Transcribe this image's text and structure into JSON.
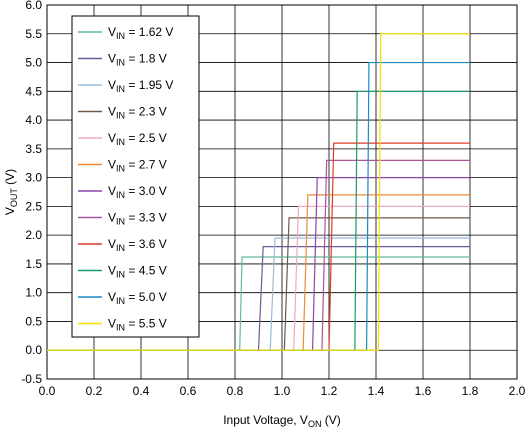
{
  "chart_data": {
    "type": "line",
    "xlabel": {
      "main": "Input Voltage, V",
      "sub": "ON",
      "unit": " (V)"
    },
    "ylabel": {
      "main": "V",
      "sub": "OUT",
      "unit": " (V)"
    },
    "xlim": [
      0.0,
      2.0
    ],
    "ylim": [
      -0.5,
      6.0
    ],
    "x_ticks": [
      "0.0",
      "0.2",
      "0.4",
      "0.6",
      "0.8",
      "1.0",
      "1.2",
      "1.4",
      "1.6",
      "1.8",
      "2.0"
    ],
    "y_ticks": [
      "-0.5",
      "0.0",
      "0.5",
      "1.0",
      "1.5",
      "2.0",
      "2.5",
      "3.0",
      "3.5",
      "4.0",
      "4.5",
      "5.0",
      "5.5",
      "6.0"
    ],
    "grid": true,
    "legend_position": "top-left",
    "series": [
      {
        "name": "V_IN = 1.62 V",
        "legend_main": "V",
        "legend_sub": "IN",
        "legend_value": " = 1.62 V",
        "color": "#66bb99",
        "x": [
          0.0,
          0.82,
          0.83,
          1.8
        ],
        "y": [
          0.0,
          0.0,
          1.62,
          1.62
        ]
      },
      {
        "name": "V_IN = 1.8 V",
        "legend_main": "V",
        "legend_sub": "IN",
        "legend_value": " = 1.8 V",
        "color": "#6b5b95",
        "x": [
          0.0,
          0.9,
          0.92,
          1.8
        ],
        "y": [
          0.0,
          0.0,
          1.8,
          1.8
        ]
      },
      {
        "name": "V_IN = 1.95 V",
        "legend_main": "V",
        "legend_sub": "IN",
        "legend_value": " = 1.95 V",
        "color": "#99bbdd",
        "x": [
          0.0,
          0.95,
          0.97,
          1.8
        ],
        "y": [
          0.0,
          0.0,
          1.95,
          1.95
        ]
      },
      {
        "name": "V_IN = 2.3 V",
        "legend_main": "V",
        "legend_sub": "IN",
        "legend_value": " = 2.3 V",
        "color": "#6e5a4a",
        "x": [
          0.0,
          1.01,
          1.03,
          1.8
        ],
        "y": [
          0.0,
          0.0,
          2.3,
          2.3
        ]
      },
      {
        "name": "V_IN = 2.5 V",
        "legend_main": "V",
        "legend_sub": "IN",
        "legend_value": " = 2.5 V",
        "color": "#f2a9c8",
        "x": [
          0.0,
          1.05,
          1.07,
          1.8
        ],
        "y": [
          0.0,
          0.0,
          2.5,
          2.5
        ]
      },
      {
        "name": "V_IN = 2.7 V",
        "legend_main": "V",
        "legend_sub": "IN",
        "legend_value": " = 2.7 V",
        "color": "#f08a3a",
        "x": [
          0.0,
          1.09,
          1.11,
          1.8
        ],
        "y": [
          0.0,
          0.0,
          2.7,
          2.7
        ]
      },
      {
        "name": "V_IN = 3.0 V",
        "legend_main": "V",
        "legend_sub": "IN",
        "legend_value": " = 3.0 V",
        "color": "#8e44ad",
        "x": [
          0.0,
          1.13,
          1.15,
          1.8
        ],
        "y": [
          0.0,
          0.0,
          3.0,
          3.0
        ]
      },
      {
        "name": "V_IN = 3.3 V",
        "legend_main": "V",
        "legend_sub": "IN",
        "legend_value": " = 3.3 V",
        "color": "#a8559a",
        "x": [
          0.0,
          1.17,
          1.19,
          1.8
        ],
        "y": [
          0.0,
          0.0,
          3.3,
          3.3
        ]
      },
      {
        "name": "V_IN = 3.6 V",
        "legend_main": "V",
        "legend_sub": "IN",
        "legend_value": " = 3.6 V",
        "color": "#e03a2a",
        "x": [
          0.0,
          1.2,
          1.22,
          1.8
        ],
        "y": [
          0.0,
          0.0,
          3.6,
          3.6
        ]
      },
      {
        "name": "V_IN = 4.5 V",
        "legend_main": "V",
        "legend_sub": "IN",
        "legend_value": " = 4.5 V",
        "color": "#1a9a6a",
        "x": [
          0.0,
          1.31,
          1.32,
          1.8
        ],
        "y": [
          0.0,
          0.0,
          4.5,
          4.5
        ]
      },
      {
        "name": "V_IN = 5.0 V",
        "legend_main": "V",
        "legend_sub": "IN",
        "legend_value": " = 5.0 V",
        "color": "#1a8ac0",
        "x": [
          0.0,
          1.36,
          1.37,
          1.8
        ],
        "y": [
          0.0,
          0.0,
          5.0,
          5.0
        ]
      },
      {
        "name": "V_IN = 5.5 V",
        "legend_main": "V",
        "legend_sub": "IN",
        "legend_value": " = 5.5 V",
        "color": "#f5e000",
        "x": [
          0.0,
          1.41,
          1.42,
          1.8
        ],
        "y": [
          0.0,
          0.0,
          5.5,
          5.5
        ]
      }
    ]
  }
}
